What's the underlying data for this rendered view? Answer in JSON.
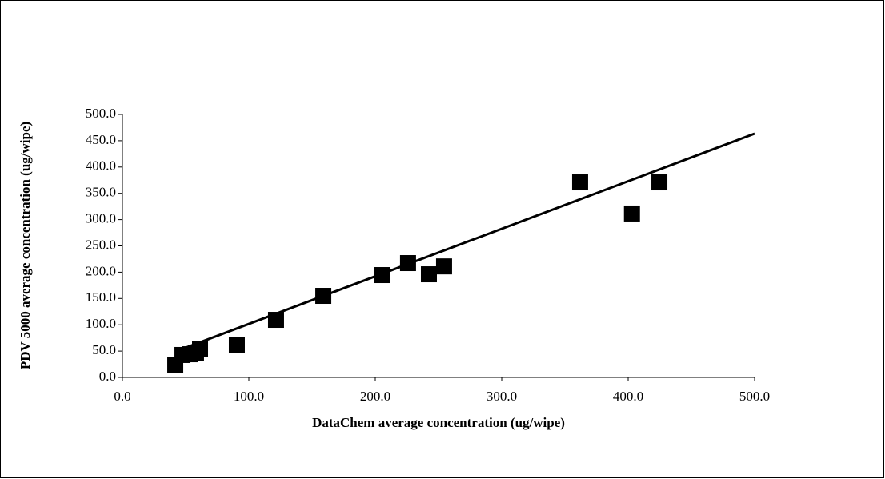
{
  "chart_data": {
    "type": "scatter",
    "x_label": "DataChem average concentration (ug/wipe)",
    "y_label": "PDV 5000 average concentration (ug/wipe)",
    "xlim": [
      0,
      500
    ],
    "ylim": [
      0,
      500
    ],
    "xticks": [
      {
        "value": 0,
        "label": "0.0"
      },
      {
        "value": 100,
        "label": "100.0"
      },
      {
        "value": 200,
        "label": "200.0"
      },
      {
        "value": 300,
        "label": "300.0"
      },
      {
        "value": 400,
        "label": "400.0"
      },
      {
        "value": 500,
        "label": "500.0"
      }
    ],
    "yticks": [
      {
        "value": 0,
        "label": "0.0"
      },
      {
        "value": 50,
        "label": "50.0"
      },
      {
        "value": 100,
        "label": "100.0"
      },
      {
        "value": 150,
        "label": "150.0"
      },
      {
        "value": 200,
        "label": "200.0"
      },
      {
        "value": 250,
        "label": "250.0"
      },
      {
        "value": 300,
        "label": "300.0"
      },
      {
        "value": 350,
        "label": "350.0"
      },
      {
        "value": 400,
        "label": "400.0"
      },
      {
        "value": 450,
        "label": "450.0"
      },
      {
        "value": 500,
        "label": "500.0"
      }
    ],
    "series": [
      {
        "type": "scatter",
        "color": "#000000",
        "x": [
          41.8,
          47.5,
          53.2,
          58.2,
          61.4,
          90.5,
          121.5,
          158.9,
          205.7,
          225.9,
          242.4,
          254.4,
          362,
          403,
          424.7
        ],
        "values": [
          24.3,
          42.6,
          44,
          47,
          53.2,
          62.3,
          109.4,
          155,
          194.5,
          217.3,
          196,
          211,
          370.8,
          311.6,
          370.8
        ]
      },
      {
        "type": "line",
        "color": "#000000",
        "x": [
          41.8,
          500
        ],
        "values": [
          49,
          463.5
        ]
      }
    ]
  }
}
